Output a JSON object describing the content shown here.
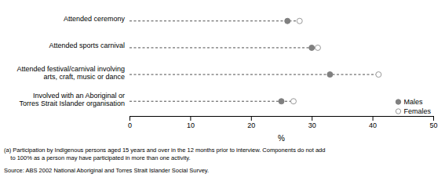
{
  "chart_data": {
    "type": "dot",
    "orientation": "horizontal",
    "categories": [
      "Attended ceremony",
      "Attended sports carnival",
      "Attended festival/carnival involving\narts, craft, music or dance",
      "Involved with an Aboriginal or\nTorres Strait Islander organisation"
    ],
    "series": [
      {
        "name": "Males",
        "color": "#808080",
        "marker": "circle",
        "values": [
          26,
          30,
          33,
          25
        ]
      },
      {
        "name": "Females",
        "color": "#999999",
        "marker": "open-circle",
        "values": [
          28,
          31,
          41,
          27
        ]
      }
    ],
    "xlabel": "%",
    "xlim": [
      0,
      50
    ],
    "xticks": [
      0,
      10,
      20,
      30,
      40,
      50
    ],
    "legend": "lower right",
    "annotations": [
      "(a) Participation by Indigenous persons aged 15 years and over in the 12 months prior to interview. Components do not add\n    to 100% as a person may have participated in more than one activity.",
      "Source: ABS 2002 National Aboriginal and Torres Strait Islander Social Survey."
    ]
  }
}
